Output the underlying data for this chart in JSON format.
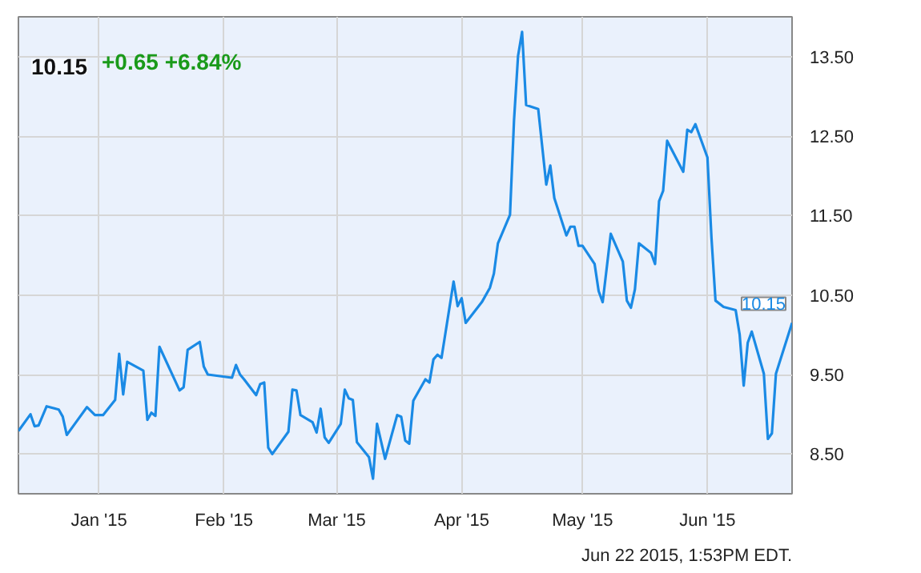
{
  "chart_data": {
    "type": "line",
    "title": "10.15",
    "subtitle": "+0.65  +6.84%",
    "annotations": [
      {
        "text": "10.15",
        "x": "2015-06-22",
        "y": 10.15
      },
      "Jun 22 2015, 1:53PM EDT."
    ],
    "x": [
      "2014-12-12",
      "2014-12-15",
      "2014-12-16",
      "2014-12-17",
      "2014-12-19",
      "2014-12-22",
      "2014-12-23",
      "2014-12-24",
      "2014-12-26",
      "2014-12-29",
      "2014-12-31",
      "2015-01-02",
      "2015-01-05",
      "2015-01-06",
      "2015-01-07",
      "2015-01-08",
      "2015-01-12",
      "2015-01-13",
      "2015-01-14",
      "2015-01-15",
      "2015-01-16",
      "2015-01-21",
      "2015-01-22",
      "2015-01-23",
      "2015-01-26",
      "2015-01-27",
      "2015-01-28",
      "2015-02-03",
      "2015-02-04",
      "2015-02-05",
      "2015-02-06",
      "2015-02-09",
      "2015-02-10",
      "2015-02-11",
      "2015-02-12",
      "2015-02-13",
      "2015-02-17",
      "2015-02-18",
      "2015-02-19",
      "2015-02-20",
      "2015-02-23",
      "2015-02-24",
      "2015-02-25",
      "2015-02-26",
      "2015-02-27",
      "2015-03-02",
      "2015-03-03",
      "2015-03-04",
      "2015-03-05",
      "2015-03-06",
      "2015-03-09",
      "2015-03-10",
      "2015-03-11",
      "2015-03-13",
      "2015-03-16",
      "2015-03-17",
      "2015-03-18",
      "2015-03-19",
      "2015-03-20",
      "2015-03-23",
      "2015-03-24",
      "2015-03-25",
      "2015-03-26",
      "2015-03-27",
      "2015-03-30",
      "2015-03-31",
      "2015-04-01",
      "2015-04-02",
      "2015-04-06",
      "2015-04-08",
      "2015-04-09",
      "2015-04-10",
      "2015-04-13",
      "2015-04-14",
      "2015-04-15",
      "2015-04-16",
      "2015-04-17",
      "2015-04-20",
      "2015-04-22",
      "2015-04-23",
      "2015-04-24",
      "2015-04-27",
      "2015-04-28",
      "2015-04-29",
      "2015-04-30",
      "2015-05-01",
      "2015-05-04",
      "2015-05-05",
      "2015-05-06",
      "2015-05-08",
      "2015-05-11",
      "2015-05-12",
      "2015-05-13",
      "2015-05-14",
      "2015-05-15",
      "2015-05-18",
      "2015-05-19",
      "2015-05-20",
      "2015-05-21",
      "2015-05-22",
      "2015-05-26",
      "2015-05-27",
      "2015-05-28",
      "2015-05-29",
      "2015-06-01",
      "2015-06-02",
      "2015-06-03",
      "2015-06-05",
      "2015-06-08",
      "2015-06-09",
      "2015-06-10",
      "2015-06-11",
      "2015-06-12",
      "2015-06-15",
      "2015-06-16",
      "2015-06-17",
      "2015-06-18",
      "2015-06-22"
    ],
    "series": [
      {
        "color": "#1a8ae5",
        "values": [
          8.79,
          9.0,
          8.85,
          8.86,
          9.1,
          9.06,
          8.97,
          8.74,
          8.88,
          9.09,
          8.99,
          8.99,
          9.18,
          9.76,
          9.25,
          9.66,
          9.55,
          8.93,
          9.02,
          8.98,
          9.85,
          9.3,
          9.34,
          9.81,
          9.91,
          9.6,
          9.5,
          9.46,
          9.62,
          9.5,
          9.44,
          9.24,
          9.38,
          9.4,
          8.58,
          8.5,
          8.78,
          9.31,
          9.3,
          8.99,
          8.9,
          8.77,
          9.07,
          8.71,
          8.64,
          8.88,
          9.31,
          9.2,
          9.18,
          8.65,
          8.46,
          8.19,
          8.88,
          8.44,
          8.99,
          8.97,
          8.67,
          8.63,
          9.17,
          9.44,
          9.4,
          9.69,
          9.75,
          9.71,
          10.67,
          10.36,
          10.46,
          10.15,
          10.41,
          10.59,
          10.77,
          11.15,
          11.51,
          12.7,
          13.51,
          13.81,
          12.89,
          12.84,
          11.89,
          12.13,
          11.72,
          11.25,
          11.36,
          11.36,
          11.12,
          11.12,
          10.89,
          10.55,
          10.41,
          11.27,
          10.92,
          10.43,
          10.34,
          10.57,
          11.15,
          11.03,
          10.89,
          11.68,
          11.81,
          12.44,
          12.05,
          12.58,
          12.55,
          12.65,
          12.23,
          11.22,
          10.43,
          10.35,
          10.31,
          10.0,
          9.36,
          9.9,
          10.04,
          9.51,
          8.69,
          8.76,
          9.51,
          10.15
        ]
      }
    ],
    "xlim": [
      "2014-12-12",
      "2015-06-22"
    ],
    "xticks": [
      {
        "value": "2015-01-01",
        "label": "Jan '15"
      },
      {
        "value": "2015-02-01",
        "label": "Feb '15"
      },
      {
        "value": "2015-03-01",
        "label": "Mar '15"
      },
      {
        "value": "2015-04-01",
        "label": "Apr '15"
      },
      {
        "value": "2015-05-01",
        "label": "May '15"
      },
      {
        "value": "2015-06-01",
        "label": "Jun '15"
      }
    ],
    "ylim": [
      8.0,
      14.0
    ],
    "yticks": [
      {
        "value": 8.5,
        "label": "8.50"
      },
      {
        "value": 9.5,
        "label": "9.50"
      },
      {
        "value": 10.5,
        "label": "10.50"
      },
      {
        "value": 11.5,
        "label": "11.50"
      },
      {
        "value": 12.5,
        "label": "12.50"
      },
      {
        "value": 13.5,
        "label": "13.50"
      }
    ],
    "grid": true,
    "marker": "none",
    "line_style": "solid"
  }
}
